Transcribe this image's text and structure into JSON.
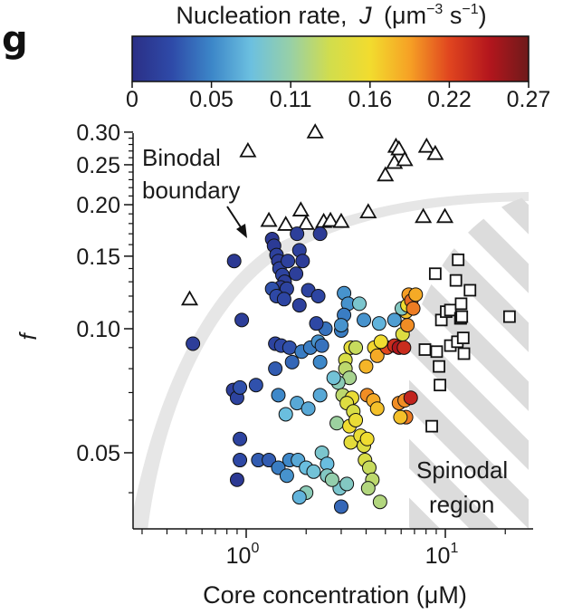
{
  "panel_label": "g",
  "chart_data": {
    "type": "scatter",
    "colorbar": {
      "title_prefix": "Nucleation rate,",
      "title_symbol": "J",
      "title_units_prefix": "(μm",
      "title_sup1": "−3",
      "title_units_mid": " s",
      "title_sup2": "−1",
      "title_units_suffix": ")",
      "ticks": [
        "0",
        "0.05",
        "0.11",
        "0.16",
        "0.22",
        "0.27"
      ],
      "range": [
        0,
        0.27
      ],
      "colormap": [
        "#2b2f86",
        "#2e4aa8",
        "#3c86c8",
        "#6cc0e0",
        "#98d0a6",
        "#d2dd4c",
        "#f2dc2e",
        "#f6a125",
        "#e0451f",
        "#b4161d",
        "#6e1a1a"
      ]
    },
    "xlabel": "Core concentration (μM)",
    "ylabel": "f",
    "x_scale": "log",
    "y_scale": "log",
    "xlim": [
      0.3,
      25
    ],
    "ylim": [
      0.036,
      0.31
    ],
    "x_ticks": [
      {
        "value": 1,
        "base": "10",
        "exp": "0"
      },
      {
        "value": 10,
        "base": "10",
        "exp": "1"
      }
    ],
    "y_ticks": [
      {
        "value": 0.05,
        "label": "0.05"
      },
      {
        "value": 0.1,
        "label": "0.10"
      },
      {
        "value": 0.15,
        "label": "0.15"
      },
      {
        "value": 0.2,
        "label": "0.20"
      },
      {
        "value": 0.25,
        "label": "0.25"
      },
      {
        "value": 0.3,
        "label": "0.30"
      }
    ],
    "annotations": {
      "binodal_line1": "Binodal",
      "binodal_line2": "boundary",
      "spinodal_line1": "Spinodal",
      "spinodal_line2": "region"
    },
    "series": [
      {
        "marker": "triangle",
        "points": [
          [
            0.52,
            0.118
          ],
          [
            1.02,
            0.27
          ],
          [
            1.3,
            0.183
          ],
          [
            1.58,
            0.179
          ],
          [
            1.88,
            0.194
          ],
          [
            2.0,
            0.18
          ],
          [
            2.22,
            0.3
          ],
          [
            2.45,
            0.182
          ],
          [
            2.65,
            0.183
          ],
          [
            3.0,
            0.182
          ],
          [
            4.1,
            0.192
          ],
          [
            5.0,
            0.236
          ],
          [
            5.55,
            0.253
          ],
          [
            5.65,
            0.277
          ],
          [
            5.85,
            0.273
          ],
          [
            6.25,
            0.257
          ],
          [
            7.75,
            0.187
          ],
          [
            8.05,
            0.277
          ],
          [
            8.9,
            0.266
          ],
          [
            9.95,
            0.187
          ]
        ]
      },
      {
        "marker": "square",
        "points": [
          [
            7.9,
            0.089
          ],
          [
            8.55,
            0.058
          ],
          [
            8.9,
            0.136
          ],
          [
            9.05,
            0.088
          ],
          [
            9.3,
            0.081
          ],
          [
            9.4,
            0.073
          ],
          [
            9.55,
            0.105
          ],
          [
            10.1,
            0.11
          ],
          [
            10.6,
            0.111
          ],
          [
            10.6,
            0.091
          ],
          [
            11.3,
            0.131
          ],
          [
            11.5,
            0.093
          ],
          [
            11.6,
            0.147
          ],
          [
            11.9,
            0.106
          ],
          [
            11.95,
            0.106
          ],
          [
            12.0,
            0.115
          ],
          [
            12.1,
            0.107
          ],
          [
            12.3,
            0.095
          ],
          [
            12.4,
            0.087
          ],
          [
            13.3,
            0.124
          ],
          [
            21.0,
            0.107
          ]
        ]
      },
      {
        "marker": "circle",
        "points": [
          [
            0.54,
            0.092,
            0.015
          ],
          [
            0.87,
            0.146,
            0.01
          ],
          [
            0.86,
            0.071,
            0.015
          ],
          [
            0.9,
            0.068,
            0.02
          ],
          [
            0.93,
            0.054,
            0.02
          ],
          [
            0.9,
            0.043,
            0.01
          ],
          [
            0.95,
            0.105,
            0.015
          ],
          [
            0.93,
            0.048,
            0.025
          ],
          [
            0.93,
            0.072,
            0.03
          ],
          [
            1.15,
            0.048,
            0.035
          ],
          [
            1.12,
            0.073,
            0.03
          ],
          [
            1.35,
            0.165,
            0.01
          ],
          [
            1.38,
            0.159,
            0.012
          ],
          [
            1.42,
            0.151,
            0.018
          ],
          [
            1.45,
            0.146,
            0.014
          ],
          [
            1.47,
            0.14,
            0.018
          ],
          [
            1.52,
            0.135,
            0.02
          ],
          [
            1.56,
            0.13,
            0.016
          ],
          [
            1.49,
            0.126,
            0.014
          ],
          [
            1.6,
            0.125,
            0.02
          ],
          [
            1.62,
            0.146,
            0.018
          ],
          [
            1.8,
            0.17,
            0.016
          ],
          [
            1.85,
            0.155,
            0.018
          ],
          [
            1.92,
            0.146,
            0.014
          ],
          [
            1.35,
            0.125,
            0.03
          ],
          [
            1.42,
            0.12,
            0.025
          ],
          [
            1.55,
            0.118,
            0.022
          ],
          [
            1.85,
            0.114,
            0.018
          ],
          [
            2.05,
            0.124,
            0.02
          ],
          [
            2.3,
            0.12,
            0.022
          ],
          [
            2.35,
            0.17,
            0.012
          ],
          [
            1.78,
            0.136,
            0.016
          ],
          [
            1.4,
            0.092,
            0.02
          ],
          [
            1.5,
            0.091,
            0.025
          ],
          [
            1.65,
            0.09,
            0.03
          ],
          [
            1.4,
            0.08,
            0.035
          ],
          [
            1.7,
            0.083,
            0.04
          ],
          [
            1.9,
            0.088,
            0.05
          ],
          [
            2.1,
            0.09,
            0.05
          ],
          [
            2.3,
            0.093,
            0.06
          ],
          [
            2.4,
            0.091,
            0.045
          ],
          [
            2.35,
            0.083,
            0.055
          ],
          [
            2.5,
            0.1,
            0.045
          ],
          [
            2.25,
            0.103,
            0.025
          ],
          [
            1.45,
            0.069,
            0.055
          ],
          [
            1.8,
            0.066,
            0.07
          ],
          [
            2.05,
            0.064,
            0.07
          ],
          [
            2.35,
            0.069,
            0.07
          ],
          [
            1.58,
            0.062,
            0.08
          ],
          [
            3.0,
            0.099,
            0.05
          ],
          [
            1.3,
            0.048,
            0.035
          ],
          [
            1.45,
            0.046,
            0.05
          ],
          [
            1.65,
            0.048,
            0.055
          ],
          [
            1.82,
            0.048,
            0.07
          ],
          [
            2.0,
            0.046,
            0.08
          ],
          [
            2.18,
            0.045,
            0.085
          ],
          [
            2.4,
            0.05,
            0.09
          ],
          [
            2.55,
            0.047,
            0.08
          ],
          [
            2.55,
            0.044,
            0.095
          ],
          [
            1.6,
            0.044,
            0.06
          ],
          [
            2.95,
            0.041,
            0.09
          ],
          [
            3.2,
            0.042,
            0.095
          ],
          [
            2.0,
            0.04,
            0.1
          ],
          [
            2.7,
            0.043,
            0.105
          ],
          [
            3.0,
            0.037,
            0.04
          ],
          [
            4.7,
            0.038,
            0.12
          ],
          [
            1.85,
            0.039,
            0.075
          ],
          [
            3.1,
            0.122,
            0.06
          ],
          [
            3.25,
            0.115,
            0.06
          ],
          [
            3.1,
            0.108,
            0.05
          ],
          [
            3.0,
            0.102,
            0.06
          ],
          [
            3.7,
            0.115,
            0.09
          ],
          [
            3.9,
            0.105,
            0.06
          ],
          [
            4.65,
            0.103,
            0.075
          ],
          [
            5.55,
            0.105,
            0.065
          ],
          [
            3.35,
            0.09,
            0.15
          ],
          [
            3.15,
            0.084,
            0.14
          ],
          [
            3.55,
            0.09,
            0.13
          ],
          [
            3.15,
            0.08,
            0.125
          ],
          [
            3.3,
            0.076,
            0.115
          ],
          [
            2.9,
            0.074,
            0.1
          ],
          [
            2.75,
            0.076,
            0.085
          ],
          [
            3.05,
            0.069,
            0.125
          ],
          [
            3.4,
            0.068,
            0.155
          ],
          [
            3.2,
            0.066,
            0.145
          ],
          [
            3.45,
            0.063,
            0.14
          ],
          [
            2.85,
            0.059,
            0.11
          ],
          [
            3.3,
            0.058,
            0.16
          ],
          [
            3.55,
            0.06,
            0.155
          ],
          [
            3.35,
            0.053,
            0.15
          ],
          [
            3.75,
            0.055,
            0.155
          ],
          [
            3.9,
            0.052,
            0.145
          ],
          [
            4.05,
            0.054,
            0.16
          ],
          [
            4.0,
            0.081,
            0.18
          ],
          [
            4.4,
            0.09,
            0.165
          ],
          [
            4.55,
            0.086,
            0.185
          ],
          [
            4.05,
            0.069,
            0.195
          ],
          [
            4.35,
            0.067,
            0.185
          ],
          [
            4.55,
            0.064,
            0.175
          ],
          [
            3.95,
            0.048,
            0.14
          ],
          [
            4.15,
            0.046,
            0.13
          ],
          [
            4.3,
            0.043,
            0.125
          ],
          [
            4.1,
            0.041,
            0.12
          ],
          [
            5.1,
            0.09,
            0.215
          ],
          [
            5.55,
            0.091,
            0.23
          ],
          [
            5.85,
            0.09,
            0.245
          ],
          [
            6.2,
            0.09,
            0.23
          ],
          [
            5.85,
            0.066,
            0.195
          ],
          [
            6.25,
            0.067,
            0.195
          ],
          [
            6.35,
            0.061,
            0.2
          ],
          [
            5.95,
            0.061,
            0.175
          ],
          [
            6.7,
            0.068,
            0.235
          ],
          [
            6.1,
            0.097,
            0.145
          ],
          [
            6.45,
            0.102,
            0.195
          ],
          [
            6.35,
            0.11,
            0.175
          ],
          [
            6.05,
            0.112,
            0.095
          ],
          [
            6.45,
            0.114,
            0.16
          ],
          [
            6.55,
            0.121,
            0.19
          ],
          [
            6.75,
            0.117,
            0.205
          ],
          [
            6.9,
            0.112,
            0.2
          ],
          [
            7.1,
            0.121,
            0.185
          ],
          [
            4.75,
            0.093,
            0.16
          ]
        ]
      }
    ]
  }
}
